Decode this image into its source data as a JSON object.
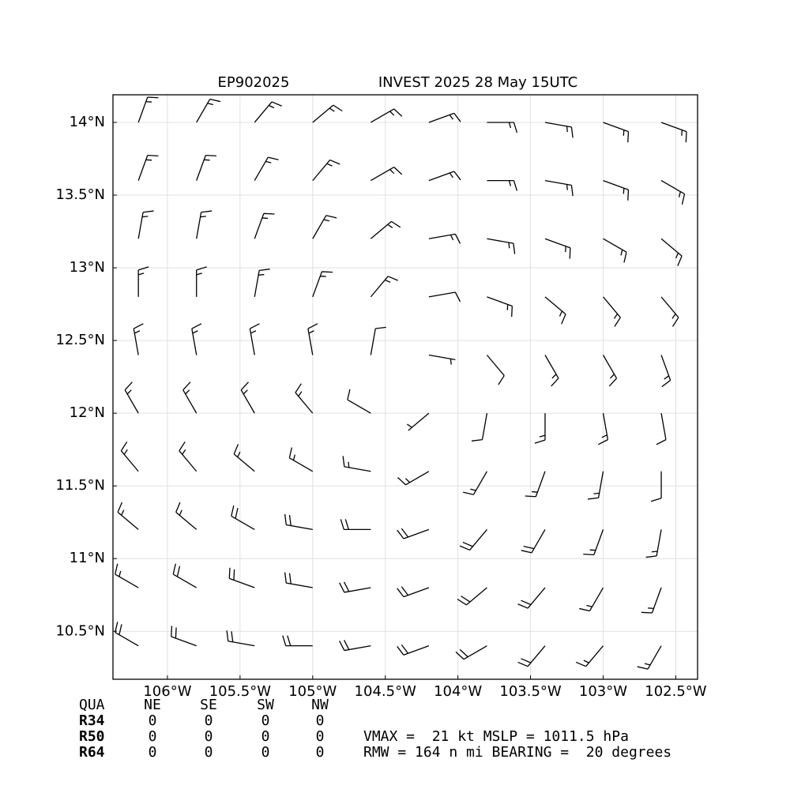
{
  "chart_data": {
    "type": "barbs",
    "title_left": "EP902025",
    "title_right": "INVEST 2025 28 May 15UTC",
    "xlim": [
      -106.375,
      -102.35
    ],
    "ylim": [
      10.17,
      14.19
    ],
    "xticks": [
      {
        "value": -106,
        "label": "106°W"
      },
      {
        "value": -105.5,
        "label": "105.5°W"
      },
      {
        "value": -105,
        "label": "105°W"
      },
      {
        "value": -104.5,
        "label": "104.5°W"
      },
      {
        "value": -104,
        "label": "104°W"
      },
      {
        "value": -103.5,
        "label": "103.5°W"
      },
      {
        "value": -103,
        "label": "103°W"
      },
      {
        "value": -102.5,
        "label": "102.5°W"
      }
    ],
    "yticks": [
      {
        "value": 10.5,
        "label": "10.5°N"
      },
      {
        "value": 11,
        "label": "11°N"
      },
      {
        "value": 11.5,
        "label": "11.5°N"
      },
      {
        "value": 12,
        "label": "12°N"
      },
      {
        "value": 12.5,
        "label": "12.5°N"
      },
      {
        "value": 13,
        "label": "13°N"
      },
      {
        "value": 13.5,
        "label": "13.5°N"
      },
      {
        "value": 14,
        "label": "14°N"
      }
    ],
    "grid": true,
    "color": "#000000",
    "lons": [
      -106.2,
      -105.8,
      -105.4,
      -105.0,
      -104.6,
      -104.2,
      -103.8,
      -103.4,
      -103.0,
      -102.6
    ],
    "lats": [
      10.4,
      10.8,
      11.2,
      11.6,
      12.0,
      12.4,
      12.8,
      13.2,
      13.6,
      14.0
    ],
    "speed": [
      [
        20,
        20,
        20,
        20,
        20,
        20,
        20,
        20,
        15,
        15
      ],
      [
        15,
        20,
        20,
        20,
        20,
        20,
        20,
        20,
        15,
        15
      ],
      [
        15,
        15,
        20,
        20,
        20,
        20,
        20,
        20,
        15,
        15
      ],
      [
        15,
        15,
        15,
        15,
        15,
        15,
        15,
        15,
        15,
        10
      ],
      [
        15,
        15,
        15,
        15,
        10,
        5,
        10,
        15,
        15,
        10
      ],
      [
        15,
        15,
        15,
        15,
        10,
        5,
        10,
        15,
        15,
        15
      ],
      [
        15,
        15,
        15,
        15,
        15,
        10,
        15,
        15,
        15,
        15
      ],
      [
        15,
        15,
        15,
        15,
        15,
        15,
        15,
        15,
        15,
        15
      ],
      [
        15,
        15,
        15,
        15,
        15,
        15,
        15,
        15,
        15,
        15
      ],
      [
        15,
        15,
        15,
        15,
        15,
        15,
        15,
        15,
        15,
        15
      ]
    ],
    "direction": [
      [
        300,
        290,
        280,
        270,
        260,
        250,
        240,
        220,
        220,
        210
      ],
      [
        300,
        300,
        290,
        280,
        260,
        250,
        230,
        220,
        210,
        200
      ],
      [
        310,
        310,
        300,
        280,
        270,
        250,
        220,
        210,
        200,
        190
      ],
      [
        320,
        320,
        310,
        300,
        280,
        240,
        210,
        200,
        190,
        180
      ],
      [
        330,
        330,
        330,
        320,
        300,
        230,
        190,
        180,
        170,
        170
      ],
      [
        350,
        350,
        350,
        350,
        10,
        100,
        140,
        150,
        150,
        160
      ],
      [
        360,
        360,
        10,
        20,
        40,
        80,
        110,
        130,
        140,
        140
      ],
      [
        10,
        10,
        20,
        30,
        50,
        80,
        100,
        110,
        120,
        130
      ],
      [
        20,
        20,
        30,
        40,
        60,
        70,
        90,
        100,
        110,
        120
      ],
      [
        20,
        30,
        40,
        50,
        60,
        70,
        90,
        100,
        110,
        110
      ]
    ]
  },
  "table": {
    "header": [
      "QUA",
      "NE",
      "SE",
      "SW",
      "NW"
    ],
    "rows": [
      [
        "R34",
        0,
        0,
        0,
        0
      ],
      [
        "R50",
        0,
        0,
        0,
        0
      ],
      [
        "R64",
        0,
        0,
        0,
        0
      ]
    ],
    "info": [
      "VMAX =  21 kt MSLP = 1011.5 hPa",
      "RMW = 164 n mi BEARING =  20 degrees"
    ]
  }
}
